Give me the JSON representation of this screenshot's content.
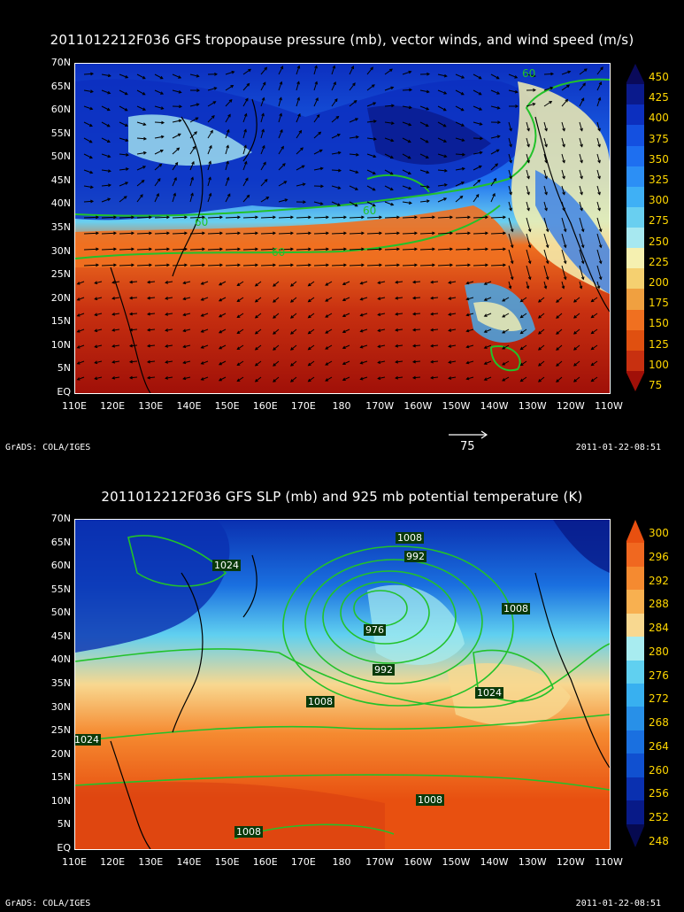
{
  "panels": [
    {
      "title": "2011012212F036 GFS tropopause pressure (mb), vector winds, and wind speed (m/s)",
      "lat_labels": [
        "70N",
        "65N",
        "60N",
        "55N",
        "50N",
        "45N",
        "40N",
        "35N",
        "30N",
        "25N",
        "20N",
        "15N",
        "10N",
        "5N",
        "EQ"
      ],
      "lon_labels": [
        "110E",
        "120E",
        "130E",
        "140E",
        "150E",
        "160E",
        "170E",
        "180",
        "170W",
        "160W",
        "150W",
        "140W",
        "130W",
        "120W",
        "110W"
      ],
      "colorbar": {
        "labels": [
          "450",
          "425",
          "400",
          "375",
          "350",
          "325",
          "300",
          "275",
          "250",
          "225",
          "200",
          "175",
          "150",
          "125",
          "100",
          "75"
        ],
        "colors": [
          "#0a0a5a",
          "#0a1a8c",
          "#0c2fbf",
          "#1450e0",
          "#1e6ff0",
          "#2c8ff5",
          "#3fb0f5",
          "#69cff0",
          "#a7e8f0",
          "#f5f0b0",
          "#f5d070",
          "#f0a040",
          "#f07020",
          "#e05010",
          "#c83010",
          "#a01008"
        ]
      },
      "vector_reference": "75",
      "contour_labels": [
        "60",
        "60",
        "60",
        "60"
      ],
      "footer_left": "GrADS: COLA/IGES",
      "footer_right": "2011-01-22-08:51"
    },
    {
      "title": "2011012212F036 GFS SLP (mb) and 925 mb potential temperature (K)",
      "lat_labels": [
        "70N",
        "65N",
        "60N",
        "55N",
        "50N",
        "45N",
        "40N",
        "35N",
        "30N",
        "25N",
        "20N",
        "15N",
        "10N",
        "5N",
        "EQ"
      ],
      "lon_labels": [
        "110E",
        "120E",
        "130E",
        "140E",
        "150E",
        "160E",
        "170E",
        "180",
        "170W",
        "160W",
        "150W",
        "140W",
        "130W",
        "120W",
        "110W"
      ],
      "colorbar": {
        "labels": [
          "300",
          "296",
          "292",
          "288",
          "284",
          "280",
          "276",
          "272",
          "268",
          "264",
          "260",
          "256",
          "252",
          "248"
        ],
        "colors": [
          "#e85010",
          "#f06820",
          "#f58a30",
          "#f8b050",
          "#f8d890",
          "#a8ecf0",
          "#60d0f0",
          "#38b0f0",
          "#2890e8",
          "#1a70e0",
          "#1050d0",
          "#0a30b0",
          "#081a88",
          "#060a50"
        ]
      },
      "contour_labels": [
        "1008",
        "992",
        "1024",
        "1008",
        "976",
        "992",
        "1008",
        "1024",
        "1024",
        "1008",
        "1008"
      ],
      "footer_left": "GrADS: COLA/IGES",
      "footer_right": "2011-01-22-08:51"
    }
  ]
}
